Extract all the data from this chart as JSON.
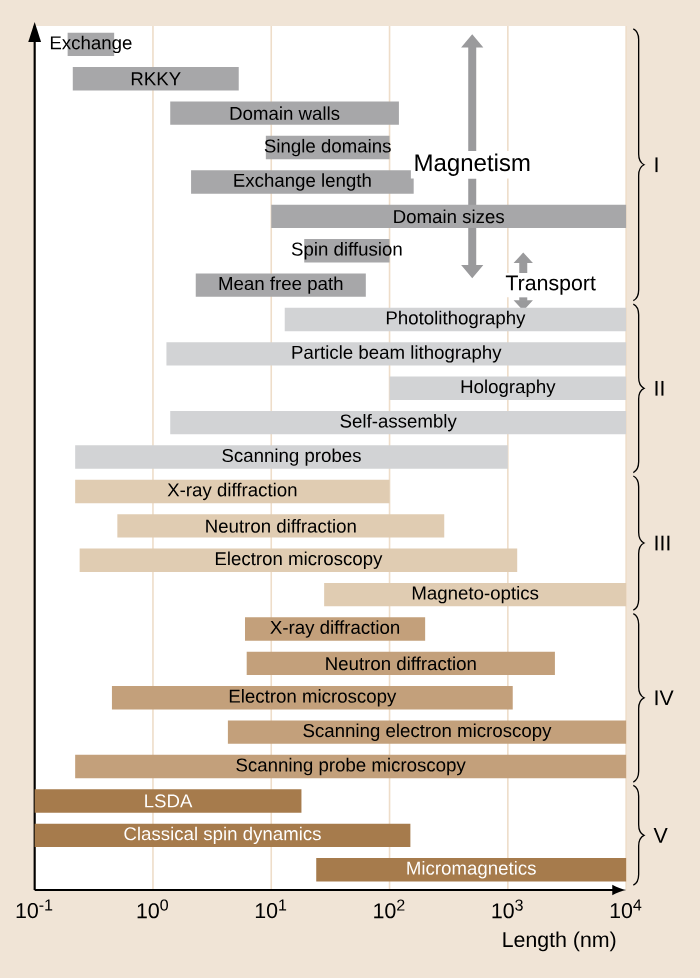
{
  "chart_data": {
    "type": "bar",
    "orientation": "horizontal",
    "xlabel": "Length (nm)",
    "log": "x",
    "grid": "x",
    "xlim": [
      0.1,
      10000
    ],
    "xticks": [
      {
        "value": 0.1,
        "label": "10$^{-1}$"
      },
      {
        "value": 1,
        "label": "10$^{0}$"
      },
      {
        "value": 10,
        "label": "10$^{1}$"
      },
      {
        "value": 100,
        "label": "10$^{2}$"
      },
      {
        "value": 1000,
        "label": "10$^{3}$"
      },
      {
        "value": 10000,
        "label": "10$^{4}$"
      }
    ],
    "categories": [
      "Exchange",
      "RKKY",
      "Domain walls",
      "Single domains",
      "Exchange length",
      "Domain sizes",
      "Spin diffusion",
      "Mean free path",
      "Photolithography",
      "Particle beam lithography",
      "Holography",
      "Self-assembly",
      "Scanning probes",
      "X-ray diffraction",
      "Neutron diffraction",
      "Electron microscopy",
      "Magneto-optics",
      "X-ray diffraction",
      "Neutron diffraction",
      "Electron microscopy",
      "Scanning electron microscopy",
      "Scanning probe microscopy",
      "LSDA",
      "Classical spin dynamics",
      "Micromagnetics"
    ],
    "base": [
      0.19,
      0.21,
      1.4,
      9,
      2.1,
      10,
      19,
      2.3,
      13,
      1.3,
      100,
      1.4,
      0.22,
      0.22,
      0.5,
      0.24,
      28,
      6,
      6.2,
      0.45,
      4.3,
      0.22,
      0.1,
      0.1,
      24
    ],
    "values": [
      0.28,
      5.1,
      118.6,
      91,
      157.9,
      9990,
      81,
      60.7,
      9987,
      9998.7,
      9900,
      9998.6,
      999.8,
      99.8,
      289.5,
      1199.8,
      9972,
      194,
      2494,
      1099.6,
      9995.7,
      9999.8,
      17.9,
      149.9,
      9976
    ],
    "colors": [
      "#a7a7a9",
      "#a7a7a9",
      "#a7a7a9",
      "#a7a7a9",
      "#a7a7a9",
      "#a7a7a9",
      "#a7a7a9",
      "#a7a7a9",
      "#d2d3d5",
      "#d2d3d5",
      "#d2d3d5",
      "#d2d3d5",
      "#d2d3d5",
      "#e0ccb2",
      "#e0ccb2",
      "#e0ccb2",
      "#e0ccb2",
      "#c3a07b",
      "#c3a07b",
      "#c3a07b",
      "#c3a07b",
      "#c3a07b",
      "#a67b4c",
      "#a67b4c",
      "#a67b4c"
    ],
    "annotations": [
      "Magnetism",
      "Transport",
      "I",
      "II",
      "III",
      "IV",
      "V"
    ]
  }
}
